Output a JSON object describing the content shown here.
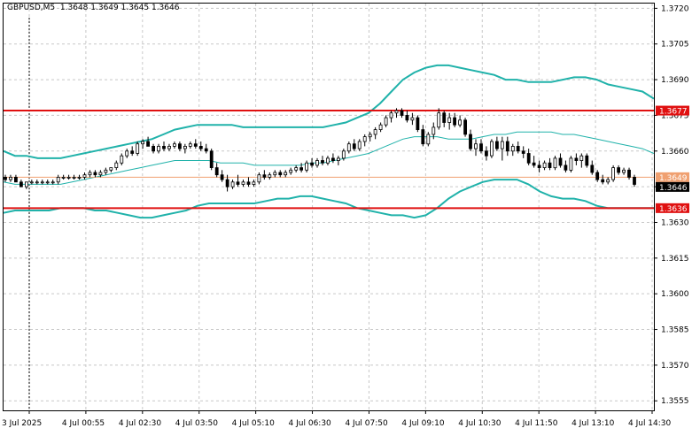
{
  "header": {
    "symbol": "GBPUSD,M5",
    "ohlc": "1.3648 1.3649 1.3645 1.3646"
  },
  "colors": {
    "background": "#ffffff",
    "grid": "#c8c8c8",
    "bands": "#20b2aa",
    "candle_up": "#ffffff",
    "candle_down": "#000000",
    "level_line": "#e01010",
    "bid_line": "#f0a070"
  },
  "chart_data": {
    "type": "candlestick",
    "title": "GBPUSD,M5",
    "x_tick_labels": [
      "3 Jul 2025",
      "4 Jul 00:55",
      "4 Jul 02:30",
      "4 Jul 03:50",
      "4 Jul 05:10",
      "4 Jul 06:30",
      "4 Jul 07:50",
      "4 Jul 09:10",
      "4 Jul 10:30",
      "4 Jul 11:50",
      "4 Jul 13:10",
      "4 Jul 14:30"
    ],
    "y_tick_labels": [
      "1.3720",
      "1.3705",
      "1.3690",
      "1.3675",
      "1.3660",
      "1.3645",
      "1.3630",
      "1.3615",
      "1.3600",
      "1.3585",
      "1.3570",
      "1.3555"
    ],
    "y_ticks": [
      1.372,
      1.3705,
      1.369,
      1.3675,
      1.366,
      1.3645,
      1.363,
      1.3615,
      1.36,
      1.3585,
      1.357,
      1.3555
    ],
    "ylim": [
      1.3551,
      1.3722
    ],
    "grid": true,
    "levels": [
      {
        "label": "1.3677",
        "value": 1.3677
      },
      {
        "label": "1.3636",
        "value": 1.3636
      }
    ],
    "price_tags": [
      {
        "label": "1.3649",
        "value": 1.3649,
        "kind": "ask"
      },
      {
        "label": "1.3646",
        "value": 1.3646,
        "kind": "bid"
      }
    ],
    "bands": {
      "upper": [
        1.366,
        1.3658,
        1.3658,
        1.3657,
        1.3657,
        1.3657,
        1.3658,
        1.3659,
        1.366,
        1.3661,
        1.3662,
        1.3663,
        1.3664,
        1.3665,
        1.3667,
        1.3669,
        1.367,
        1.3671,
        1.3671,
        1.3671,
        1.3671,
        1.367,
        1.367,
        1.367,
        1.367,
        1.367,
        1.367,
        1.367,
        1.367,
        1.3671,
        1.3672,
        1.3674,
        1.3676,
        1.368,
        1.3685,
        1.369,
        1.3693,
        1.3695,
        1.3696,
        1.3696,
        1.3695,
        1.3694,
        1.3693,
        1.3692,
        1.369,
        1.369,
        1.3689,
        1.3689,
        1.3689,
        1.369,
        1.3691,
        1.3691,
        1.369,
        1.3688,
        1.3687,
        1.3686,
        1.3685,
        1.3682
      ],
      "middle": [
        1.3647,
        1.3646,
        1.3646,
        1.3646,
        1.3646,
        1.3646,
        1.3647,
        1.3648,
        1.3649,
        1.365,
        1.3651,
        1.3652,
        1.3653,
        1.3654,
        1.3655,
        1.3656,
        1.3656,
        1.3656,
        1.3656,
        1.3655,
        1.3655,
        1.3655,
        1.3654,
        1.3654,
        1.3654,
        1.3654,
        1.3654,
        1.3655,
        1.3655,
        1.3656,
        1.3657,
        1.3658,
        1.3659,
        1.3661,
        1.3663,
        1.3665,
        1.3666,
        1.3666,
        1.3666,
        1.3665,
        1.3665,
        1.3665,
        1.3666,
        1.3667,
        1.3667,
        1.3668,
        1.3668,
        1.3668,
        1.3668,
        1.3667,
        1.3667,
        1.3666,
        1.3665,
        1.3664,
        1.3663,
        1.3662,
        1.3661,
        1.3659
      ],
      "lower": [
        1.3634,
        1.3635,
        1.3635,
        1.3635,
        1.3635,
        1.3636,
        1.3636,
        1.3636,
        1.3635,
        1.3635,
        1.3634,
        1.3633,
        1.3632,
        1.3632,
        1.3633,
        1.3634,
        1.3635,
        1.3637,
        1.3638,
        1.3638,
        1.3638,
        1.3638,
        1.3638,
        1.3639,
        1.364,
        1.364,
        1.3641,
        1.3641,
        1.364,
        1.3639,
        1.3638,
        1.3636,
        1.3635,
        1.3634,
        1.3633,
        1.3633,
        1.3632,
        1.3633,
        1.3636,
        1.364,
        1.3643,
        1.3645,
        1.3647,
        1.3648,
        1.3648,
        1.3648,
        1.3646,
        1.3643,
        1.3641,
        1.364,
        1.364,
        1.3639,
        1.3637,
        1.3636,
        1.3636,
        1.3636,
        1.3636,
        1.3636
      ]
    },
    "candles": [
      [
        1.3649,
        1.365,
        1.3647,
        1.3648
      ],
      [
        1.3648,
        1.365,
        1.3647,
        1.3649
      ],
      [
        1.3649,
        1.365,
        1.3647,
        1.3647
      ],
      [
        1.3647,
        1.3648,
        1.3645,
        1.3645
      ],
      [
        1.3645,
        1.3647,
        1.3644,
        1.3647
      ],
      [
        1.3647,
        1.3648,
        1.3646,
        1.3647
      ],
      [
        1.3647,
        1.3648,
        1.3646,
        1.3647
      ],
      [
        1.3647,
        1.3648,
        1.3646,
        1.3647
      ],
      [
        1.3647,
        1.3648,
        1.3646,
        1.3647
      ],
      [
        1.3647,
        1.3648,
        1.3646,
        1.3647
      ],
      [
        1.3647,
        1.365,
        1.3646,
        1.3649
      ],
      [
        1.3649,
        1.365,
        1.3648,
        1.3649
      ],
      [
        1.3649,
        1.365,
        1.3648,
        1.3649
      ],
      [
        1.3649,
        1.365,
        1.3648,
        1.3649
      ],
      [
        1.3649,
        1.365,
        1.3648,
        1.3649
      ],
      [
        1.3649,
        1.3651,
        1.3648,
        1.365
      ],
      [
        1.365,
        1.3652,
        1.3649,
        1.3651
      ],
      [
        1.3651,
        1.3652,
        1.3649,
        1.365
      ],
      [
        1.365,
        1.3652,
        1.3649,
        1.3651
      ],
      [
        1.3651,
        1.3653,
        1.365,
        1.3652
      ],
      [
        1.3652,
        1.3653,
        1.3651,
        1.3653
      ],
      [
        1.3653,
        1.3656,
        1.3652,
        1.3655
      ],
      [
        1.3655,
        1.3659,
        1.3654,
        1.3658
      ],
      [
        1.3658,
        1.3661,
        1.3657,
        1.366
      ],
      [
        1.366,
        1.3662,
        1.3658,
        1.3659
      ],
      [
        1.3659,
        1.3664,
        1.3658,
        1.3663
      ],
      [
        1.3663,
        1.3665,
        1.3661,
        1.3664
      ],
      [
        1.3664,
        1.3666,
        1.3662,
        1.3662
      ],
      [
        1.3662,
        1.3663,
        1.3659,
        1.366
      ],
      [
        1.366,
        1.3663,
        1.3659,
        1.3662
      ],
      [
        1.3662,
        1.3664,
        1.366,
        1.3661
      ],
      [
        1.3661,
        1.3663,
        1.366,
        1.3662
      ],
      [
        1.3662,
        1.3664,
        1.3661,
        1.3663
      ],
      [
        1.3663,
        1.3664,
        1.366,
        1.3661
      ],
      [
        1.3661,
        1.3663,
        1.3659,
        1.3662
      ],
      [
        1.3662,
        1.3664,
        1.3661,
        1.3663
      ],
      [
        1.3663,
        1.3665,
        1.3661,
        1.3662
      ],
      [
        1.3662,
        1.3664,
        1.366,
        1.3661
      ],
      [
        1.3661,
        1.3663,
        1.3659,
        1.366
      ],
      [
        1.366,
        1.3661,
        1.3652,
        1.3653
      ],
      [
        1.3653,
        1.3655,
        1.3649,
        1.365
      ],
      [
        1.365,
        1.3652,
        1.3647,
        1.3648
      ],
      [
        1.3648,
        1.365,
        1.3643,
        1.3645
      ],
      [
        1.3645,
        1.3648,
        1.3644,
        1.3647
      ],
      [
        1.3647,
        1.365,
        1.3645,
        1.3646
      ],
      [
        1.3646,
        1.3648,
        1.3645,
        1.3647
      ],
      [
        1.3647,
        1.3649,
        1.3645,
        1.3646
      ],
      [
        1.3646,
        1.3648,
        1.3645,
        1.3647
      ],
      [
        1.3647,
        1.3651,
        1.3646,
        1.365
      ],
      [
        1.365,
        1.3652,
        1.3648,
        1.3649
      ],
      [
        1.3649,
        1.3651,
        1.3648,
        1.365
      ],
      [
        1.365,
        1.3652,
        1.3649,
        1.3651
      ],
      [
        1.3651,
        1.3652,
        1.3649,
        1.365
      ],
      [
        1.365,
        1.3652,
        1.3649,
        1.3651
      ],
      [
        1.3651,
        1.3653,
        1.365,
        1.3652
      ],
      [
        1.3652,
        1.3654,
        1.3651,
        1.3653
      ],
      [
        1.3653,
        1.3655,
        1.3651,
        1.3652
      ],
      [
        1.3652,
        1.3656,
        1.3651,
        1.3655
      ],
      [
        1.3655,
        1.3657,
        1.3653,
        1.3654
      ],
      [
        1.3654,
        1.3657,
        1.3653,
        1.3656
      ],
      [
        1.3656,
        1.3658,
        1.3654,
        1.3655
      ],
      [
        1.3655,
        1.3658,
        1.3654,
        1.3657
      ],
      [
        1.3657,
        1.3659,
        1.3655,
        1.3656
      ],
      [
        1.3656,
        1.3658,
        1.3654,
        1.3657
      ],
      [
        1.3657,
        1.3661,
        1.3656,
        1.366
      ],
      [
        1.366,
        1.3664,
        1.3659,
        1.3663
      ],
      [
        1.3663,
        1.3665,
        1.366,
        1.3661
      ],
      [
        1.3661,
        1.3665,
        1.366,
        1.3664
      ],
      [
        1.3664,
        1.3667,
        1.3662,
        1.3666
      ],
      [
        1.3666,
        1.3668,
        1.3664,
        1.3667
      ],
      [
        1.3667,
        1.367,
        1.3665,
        1.3669
      ],
      [
        1.3669,
        1.3672,
        1.3668,
        1.3671
      ],
      [
        1.3671,
        1.3675,
        1.367,
        1.3674
      ],
      [
        1.3674,
        1.3677,
        1.3672,
        1.3676
      ],
      [
        1.3676,
        1.3678,
        1.3674,
        1.3677
      ],
      [
        1.3677,
        1.3678,
        1.3674,
        1.3675
      ],
      [
        1.3675,
        1.3677,
        1.3672,
        1.3673
      ],
      [
        1.3673,
        1.3676,
        1.3671,
        1.3674
      ],
      [
        1.3674,
        1.3675,
        1.3668,
        1.3669
      ],
      [
        1.3669,
        1.3671,
        1.3662,
        1.3663
      ],
      [
        1.3663,
        1.3668,
        1.3662,
        1.3667
      ],
      [
        1.3667,
        1.3672,
        1.3665,
        1.367
      ],
      [
        1.367,
        1.3678,
        1.3669,
        1.3676
      ],
      [
        1.3676,
        1.3677,
        1.367,
        1.3672
      ],
      [
        1.3672,
        1.3676,
        1.3669,
        1.3674
      ],
      [
        1.3674,
        1.3676,
        1.367,
        1.3671
      ],
      [
        1.3671,
        1.3675,
        1.367,
        1.3673
      ],
      [
        1.3673,
        1.3674,
        1.3666,
        1.3667
      ],
      [
        1.3667,
        1.3669,
        1.366,
        1.3661
      ],
      [
        1.3661,
        1.3665,
        1.3658,
        1.3663
      ],
      [
        1.3663,
        1.3665,
        1.3659,
        1.366
      ],
      [
        1.366,
        1.3662,
        1.3656,
        1.3658
      ],
      [
        1.3658,
        1.3665,
        1.3657,
        1.3664
      ],
      [
        1.3664,
        1.3666,
        1.366,
        1.3661
      ],
      [
        1.3661,
        1.3666,
        1.3656,
        1.3664
      ],
      [
        1.3664,
        1.3666,
        1.3658,
        1.366
      ],
      [
        1.366,
        1.3663,
        1.3658,
        1.3662
      ],
      [
        1.3662,
        1.3664,
        1.3659,
        1.366
      ],
      [
        1.366,
        1.3662,
        1.3657,
        1.3659
      ],
      [
        1.3659,
        1.3661,
        1.3654,
        1.3655
      ],
      [
        1.3655,
        1.3658,
        1.3653,
        1.3654
      ],
      [
        1.3654,
        1.3656,
        1.3651,
        1.3653
      ],
      [
        1.3653,
        1.3656,
        1.3652,
        1.3655
      ],
      [
        1.3655,
        1.3657,
        1.3652,
        1.3653
      ],
      [
        1.3653,
        1.3658,
        1.3652,
        1.3657
      ],
      [
        1.3657,
        1.3659,
        1.3653,
        1.3654
      ],
      [
        1.3654,
        1.3656,
        1.3651,
        1.3652
      ],
      [
        1.3652,
        1.3658,
        1.3651,
        1.3657
      ],
      [
        1.3657,
        1.3659,
        1.3654,
        1.3656
      ],
      [
        1.3656,
        1.3659,
        1.3653,
        1.3658
      ],
      [
        1.3658,
        1.3659,
        1.3653,
        1.3654
      ],
      [
        1.3654,
        1.3656,
        1.365,
        1.3651
      ],
      [
        1.3651,
        1.3652,
        1.3647,
        1.3648
      ],
      [
        1.3648,
        1.365,
        1.3646,
        1.3647
      ],
      [
        1.3647,
        1.3649,
        1.3646,
        1.3648
      ],
      [
        1.3648,
        1.3654,
        1.3647,
        1.3653
      ],
      [
        1.3653,
        1.3654,
        1.365,
        1.3651
      ],
      [
        1.3651,
        1.3653,
        1.365,
        1.3652
      ],
      [
        1.3652,
        1.3653,
        1.3648,
        1.3649
      ],
      [
        1.3649,
        1.365,
        1.3645,
        1.3646
      ]
    ]
  }
}
